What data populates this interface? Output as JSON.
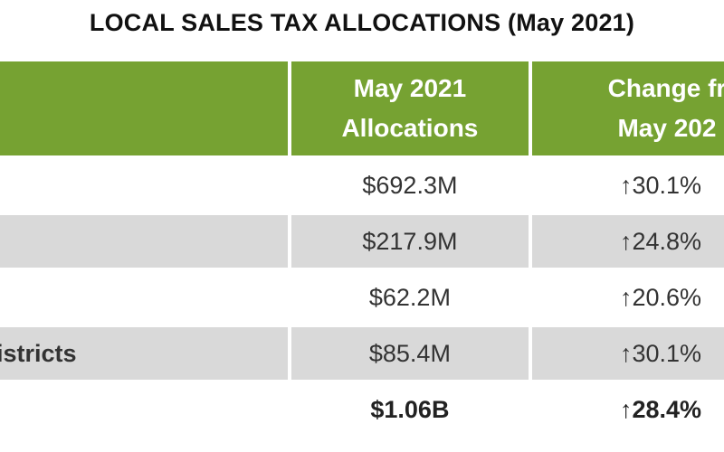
{
  "title": "LOCAL SALES TAX ALLOCATIONS (May 2021)",
  "header": {
    "col1": "",
    "col2_line1": "May 2021",
    "col2_line2": "Allocations",
    "col3_line1": "Change fr",
    "col3_line2": "May 202"
  },
  "rows": [
    {
      "name": "",
      "allocation": "$692.3M",
      "change": "↑30.1%"
    },
    {
      "name": "",
      "allocation": "$217.9M",
      "change": "↑24.8%"
    },
    {
      "name": "",
      "allocation": "$62.2M",
      "change": "↑20.6%"
    },
    {
      "name": "istricts",
      "allocation": "$85.4M",
      "change": "↑30.1%"
    },
    {
      "name": "",
      "allocation": "$1.06B",
      "change": "↑28.4%"
    }
  ],
  "colors": {
    "header_bg": "#76a232",
    "shade_row": "#d9d9d9"
  }
}
